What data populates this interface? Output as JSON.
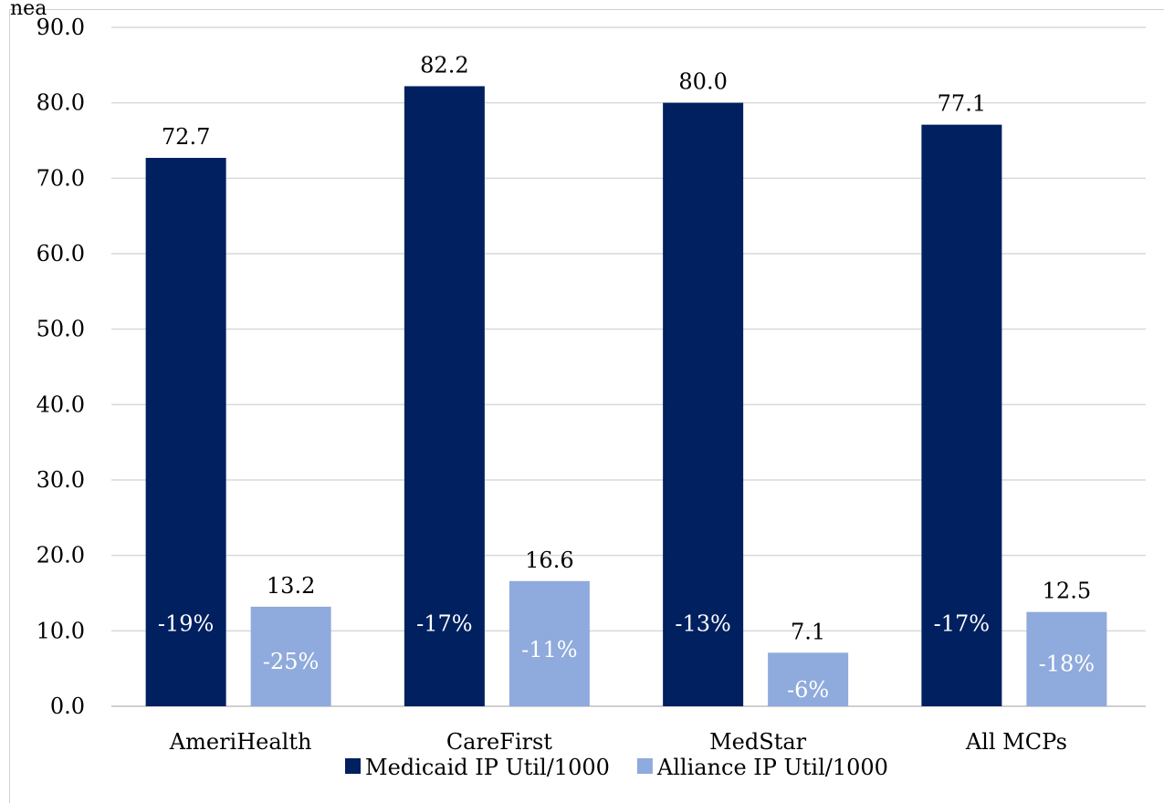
{
  "page_fragment": "nea",
  "chart_data": {
    "type": "bar",
    "categories": [
      "AmeriHealth",
      "CareFirst",
      "MedStar",
      "All MCPs"
    ],
    "series": [
      {
        "name": "Medicaid IP Util/1000",
        "color": "#002060",
        "values": [
          72.7,
          82.2,
          80.0,
          77.1
        ],
        "value_labels": [
          "72.7",
          "82.2",
          "80.0",
          "77.1"
        ],
        "change_labels": [
          "-19%",
          "-17%",
          "-13%",
          "-17%"
        ]
      },
      {
        "name": "Alliance IP Util/1000",
        "color": "#8faadc",
        "values": [
          13.2,
          16.6,
          7.1,
          12.5
        ],
        "value_labels": [
          "13.2",
          "16.6",
          "7.1",
          "12.5"
        ],
        "change_labels": [
          "-25%",
          "-11%",
          "-6%",
          "-18%"
        ]
      }
    ],
    "yticks": [
      "0.0",
      "10.0",
      "20.0",
      "30.0",
      "40.0",
      "50.0",
      "60.0",
      "70.0",
      "80.0",
      "90.0"
    ],
    "ylim": [
      0,
      90
    ],
    "grid": true,
    "legend_position": "bottom",
    "xlabel": "",
    "ylabel": "",
    "title": ""
  }
}
